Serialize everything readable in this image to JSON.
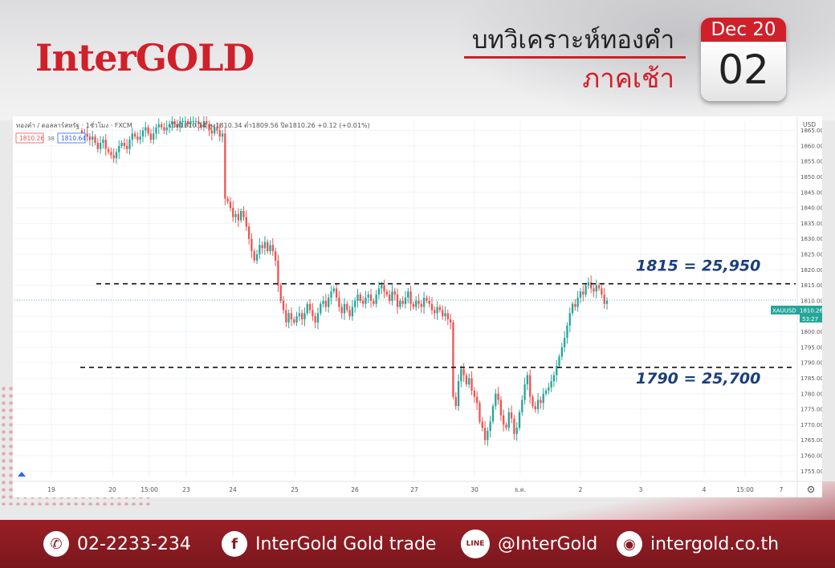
{
  "header": {
    "logo": "InterGOLD",
    "title_line1": "บทวิเคราะห์ทองคำ",
    "title_line2": "ภาคเช้า",
    "calendar_month": "Dec 20",
    "calendar_day": "02"
  },
  "chart_info": {
    "symbol": "ทองคำ / ดอลลาร์สหรัฐ · 1ชั่วโมง · FXCM",
    "ohlc": "เปิด1810.14 สูง1810.34 ต่ำ1809.56 ปิด1810.26 +0.12 (+0.01%)",
    "bid": "1810.26",
    "spread": "38",
    "ask": "1810.64",
    "currency": "USD",
    "price_tag_symbol": "XAUUSD",
    "price_tag_value": "1810.26",
    "countdown": "53:27"
  },
  "chart_data": {
    "type": "candlestick",
    "y_ticks": [
      "1865.00",
      "1860.00",
      "1855.00",
      "1850.00",
      "1845.00",
      "1840.00",
      "1835.00",
      "1830.00",
      "1825.00",
      "1820.00",
      "1815.00",
      "1810.00",
      "1805.00",
      "1800.00",
      "1795.00",
      "1790.00",
      "1785.00",
      "1780.00",
      "1775.00",
      "1770.00",
      "1765.00",
      "1760.00",
      "1755.00"
    ],
    "x_ticks": [
      "19",
      "20",
      "15:00",
      "23",
      "24",
      "25",
      "26",
      "27",
      "30",
      "ธ.ค.",
      "2",
      "3",
      "4",
      "15:00",
      "7"
    ],
    "ylim": [
      1753,
      1868
    ],
    "annotations": [
      {
        "label": "1815 = 25,950",
        "price": 1815.5
      },
      {
        "label": "1790 = 25,700",
        "price": 1788.5
      }
    ],
    "current_price": 1810.26,
    "closes": [
      1864,
      1864,
      1863,
      1862,
      1863,
      1861,
      1859,
      1861,
      1862,
      1859,
      1858,
      1857,
      1856,
      1858,
      1860,
      1861,
      1860,
      1859,
      1862,
      1864,
      1863,
      1862,
      1863,
      1865,
      1866,
      1864,
      1862,
      1864,
      1866,
      1867,
      1866,
      1865,
      1866,
      1867,
      1868,
      1867,
      1866,
      1868,
      1868,
      1868,
      1867,
      1868,
      1868,
      1868,
      1867,
      1866,
      1868,
      1867,
      1865,
      1864,
      1866,
      1865,
      1863,
      1864,
      1843,
      1842,
      1840,
      1837,
      1838,
      1836,
      1839,
      1837,
      1834,
      1830,
      1826,
      1823,
      1825,
      1828,
      1827,
      1829,
      1826,
      1828,
      1826,
      1823,
      1815,
      1810,
      1807,
      1803,
      1806,
      1804,
      1803,
      1805,
      1806,
      1804,
      1806,
      1809,
      1807,
      1805,
      1803,
      1806,
      1809,
      1810,
      1808,
      1811,
      1813,
      1814,
      1811,
      1808,
      1806,
      1809,
      1807,
      1805,
      1808,
      1810,
      1812,
      1810,
      1809,
      1811,
      1812,
      1810,
      1809,
      1812,
      1814,
      1815,
      1813,
      1812,
      1810,
      1813,
      1812,
      1808,
      1810,
      1809,
      1811,
      1813,
      1809,
      1808,
      1810,
      1809,
      1808,
      1811,
      1810,
      1809,
      1807,
      1806,
      1808,
      1807,
      1805,
      1806,
      1804,
      1803,
      1779,
      1776,
      1784,
      1788,
      1786,
      1783,
      1785,
      1781,
      1779,
      1777,
      1771,
      1769,
      1765,
      1768,
      1771,
      1776,
      1780,
      1778,
      1773,
      1770,
      1769,
      1774,
      1772,
      1767,
      1769,
      1774,
      1778,
      1783,
      1786,
      1779,
      1776,
      1775,
      1778,
      1777,
      1780,
      1781,
      1782,
      1784,
      1786,
      1789,
      1792,
      1795,
      1798,
      1802,
      1806,
      1809,
      1808,
      1811,
      1813,
      1812,
      1815,
      1816,
      1814,
      1813,
      1815,
      1814,
      1812,
      1809,
      1810
    ]
  },
  "footer": {
    "phone": "02-2233-234",
    "facebook": "InterGold Gold trade",
    "line": "@InterGold",
    "website": "intergold.co.th",
    "line_icon_text": "LINE",
    "fb_icon_text": "f"
  }
}
